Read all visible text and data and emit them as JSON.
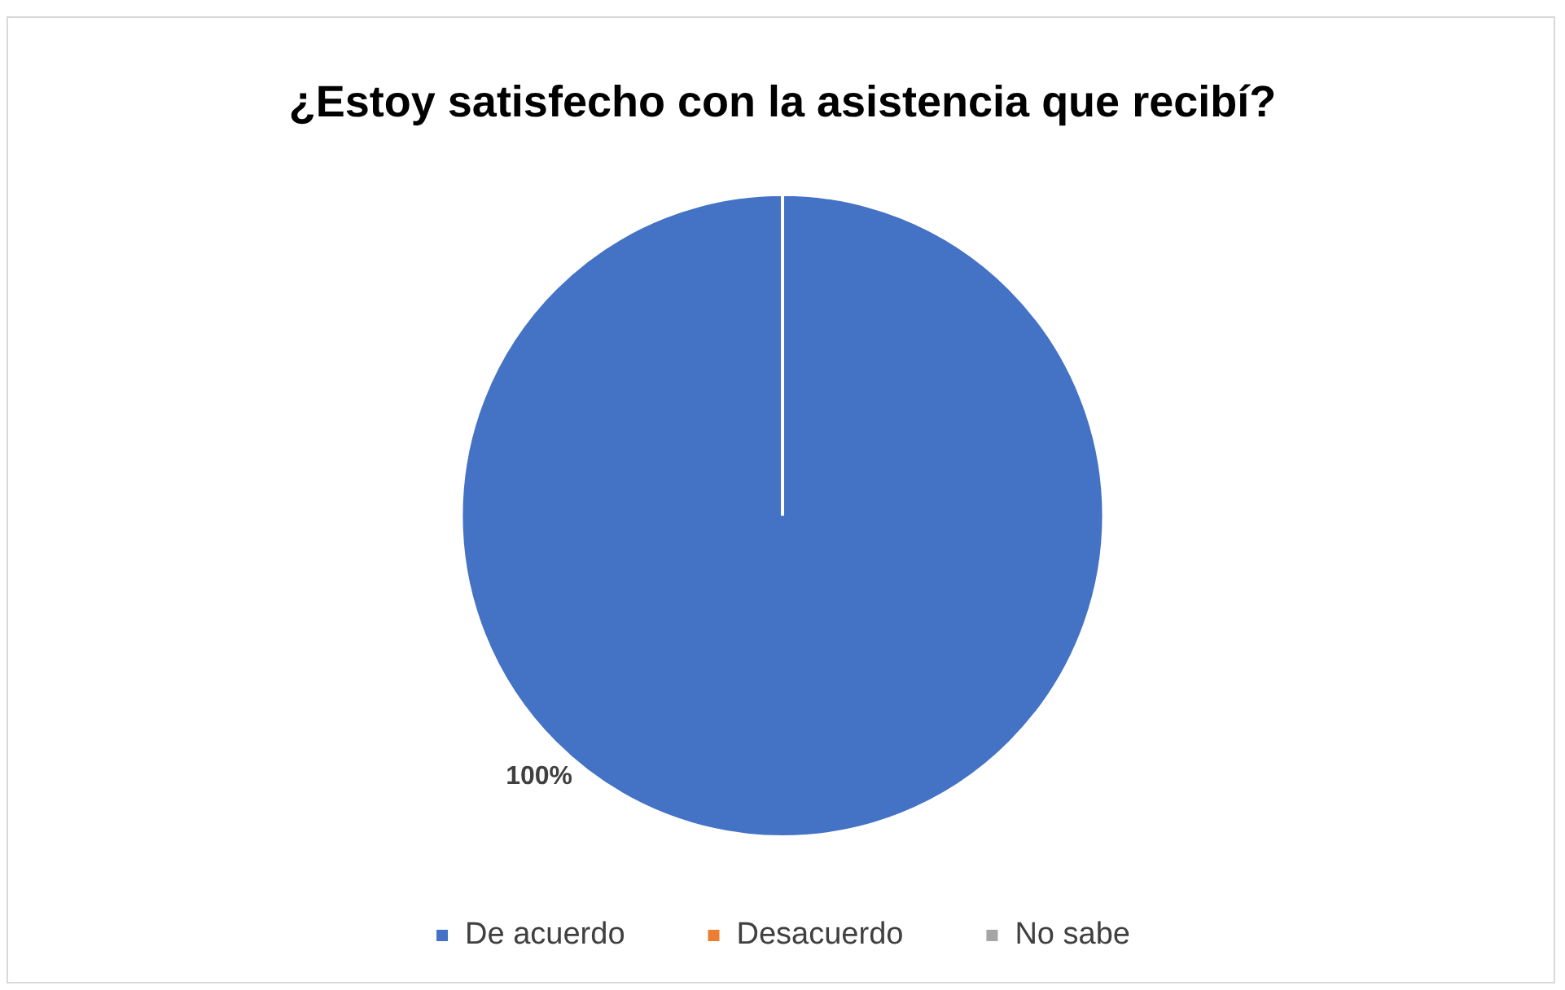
{
  "chart_data": {
    "type": "pie",
    "title": "¿Estoy satisfecho con la asistencia que recibí?",
    "categories": [
      "De acuerdo",
      "Desacuerdo",
      "No sabe"
    ],
    "values": [
      100,
      0,
      0
    ],
    "colors": [
      "#4472c4",
      "#ed7d31",
      "#a5a5a5"
    ],
    "value_labels": [
      "100%",
      null,
      null
    ],
    "legend": "bottom"
  }
}
